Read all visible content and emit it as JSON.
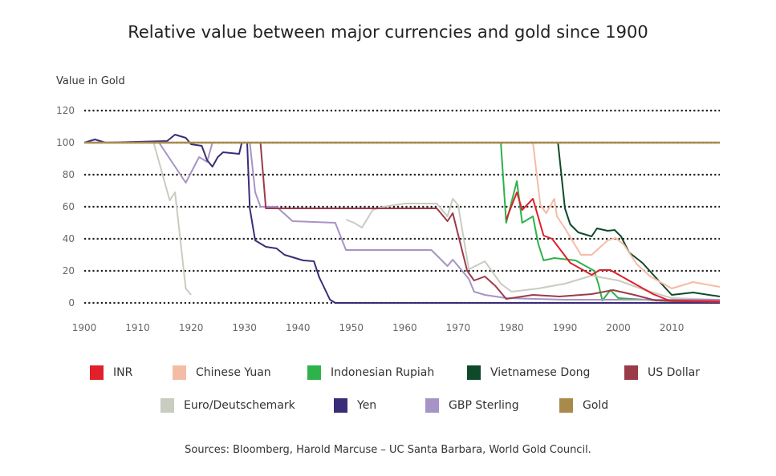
{
  "chart_data": {
    "type": "line",
    "title": "Relative value between major currencies and gold since 1900",
    "ylabel": "Value in Gold",
    "xlabel": "",
    "xlim": [
      1900,
      2019
    ],
    "ylim": [
      0,
      120
    ],
    "x_ticks": [
      "1900",
      "1910",
      "1920",
      "1930",
      "1940",
      "1950",
      "1960",
      "1970",
      "1980",
      "1990",
      "2000",
      "2010"
    ],
    "y_ticks": [
      "0",
      "20",
      "40",
      "60",
      "80",
      "100",
      "120"
    ],
    "grid": "horizontal dotted",
    "legend_placement": "bottom",
    "series": [
      {
        "name": "Gold",
        "color": "#a88a4c",
        "points": [
          [
            1900,
            100
          ],
          [
            2019,
            100
          ]
        ]
      },
      {
        "name": "Indonesian Rupiah",
        "color": "#2db34a",
        "points": [
          [
            1900,
            100
          ],
          [
            1978,
            100
          ],
          [
            1979,
            50
          ],
          [
            1981,
            76
          ],
          [
            1982,
            50
          ],
          [
            1984,
            54
          ],
          [
            1985,
            37
          ],
          [
            1986,
            26.5
          ],
          [
            1988,
            28
          ],
          [
            1992,
            26.5
          ],
          [
            1995.5,
            20
          ],
          [
            1996.3,
            11.5
          ],
          [
            1997,
            1.5
          ],
          [
            1998.5,
            8
          ],
          [
            2000,
            3
          ],
          [
            2005,
            2
          ],
          [
            2010,
            1
          ],
          [
            2019,
            1
          ]
        ]
      },
      {
        "name": "Vietnamese Dong",
        "color": "#0e4a2a",
        "points": [
          [
            1966,
            100
          ],
          [
            1988.7,
            100
          ],
          [
            1990,
            59
          ],
          [
            1991,
            49
          ],
          [
            1992.5,
            44
          ],
          [
            1995,
            41.5
          ],
          [
            1996,
            46.5
          ],
          [
            1998,
            45
          ],
          [
            1999.3,
            45.5
          ],
          [
            2000.5,
            41.5
          ],
          [
            2002,
            31.5
          ],
          [
            2004.5,
            25
          ],
          [
            2007.5,
            14
          ],
          [
            2010,
            5
          ],
          [
            2014,
            6.5
          ],
          [
            2019,
            4
          ]
        ]
      },
      {
        "name": "Euro/Deutschemark",
        "color": "#c9ccc0",
        "points": [
          [
            1900,
            100
          ],
          [
            1913,
            100
          ],
          [
            1916,
            64
          ],
          [
            1917,
            69
          ],
          [
            1919,
            9
          ],
          [
            1920,
            5
          ]
        ]
      },
      {
        "name": "Euro/Deutschemark",
        "color": "#c9ccc0",
        "points": [
          [
            1949,
            52
          ],
          [
            1950.5,
            50
          ],
          [
            1952,
            47
          ],
          [
            1954,
            58
          ],
          [
            1956,
            60
          ],
          [
            1960,
            62
          ],
          [
            1966,
            62
          ],
          [
            1968,
            54
          ],
          [
            1969,
            65
          ],
          [
            1970,
            61
          ],
          [
            1972,
            21
          ],
          [
            1975,
            26
          ],
          [
            1978,
            12
          ],
          [
            1980,
            7
          ],
          [
            1985,
            9
          ],
          [
            1990,
            12
          ],
          [
            1995,
            17
          ],
          [
            2000,
            14
          ],
          [
            2005,
            8
          ],
          [
            2010,
            3
          ],
          [
            2019,
            2
          ]
        ]
      },
      {
        "name": "GBP Sterling",
        "color": "#a893c6",
        "points": [
          [
            1900,
            100
          ],
          [
            1914,
            100
          ],
          [
            1919,
            75
          ],
          [
            1921.5,
            91
          ],
          [
            1923,
            88
          ],
          [
            1924,
            100
          ],
          [
            1931,
            100
          ],
          [
            1932,
            69
          ],
          [
            1933,
            60
          ],
          [
            1936,
            60
          ],
          [
            1939,
            51
          ],
          [
            1947,
            50
          ],
          [
            1949,
            33
          ],
          [
            1965,
            33
          ],
          [
            1968,
            23
          ],
          [
            1969,
            27
          ],
          [
            1972,
            15
          ],
          [
            1973,
            7
          ],
          [
            1975,
            5
          ],
          [
            1979,
            3
          ],
          [
            1990,
            2
          ],
          [
            2019,
            2
          ]
        ]
      },
      {
        "name": "Yen",
        "color": "#3a2d78",
        "points": [
          [
            1900,
            100
          ],
          [
            1902,
            102
          ],
          [
            1904,
            100
          ],
          [
            1915.5,
            101
          ],
          [
            1917,
            105
          ],
          [
            1919,
            103
          ],
          [
            1920,
            99
          ],
          [
            1922,
            98
          ],
          [
            1923,
            89
          ],
          [
            1924,
            85
          ],
          [
            1925,
            91
          ],
          [
            1926,
            94
          ],
          [
            1929,
            93
          ],
          [
            1929.5,
            100
          ],
          [
            1930.5,
            100
          ],
          [
            1931,
            59
          ],
          [
            1932,
            39
          ],
          [
            1934,
            35
          ],
          [
            1936,
            34
          ],
          [
            1937.5,
            30
          ],
          [
            1939.5,
            28
          ],
          [
            1941,
            26.5
          ],
          [
            1943,
            26
          ],
          [
            1944,
            16
          ],
          [
            1946,
            2
          ],
          [
            1947,
            0
          ],
          [
            2019,
            0
          ]
        ]
      },
      {
        "name": "US Dollar",
        "color": "#9b3b4a",
        "points": [
          [
            1900,
            100
          ],
          [
            1933,
            100
          ],
          [
            1934,
            59
          ],
          [
            1966,
            59
          ],
          [
            1968,
            51
          ],
          [
            1969,
            56
          ],
          [
            1971.7,
            20
          ],
          [
            1973,
            14
          ],
          [
            1975,
            16.5
          ],
          [
            1977,
            10.5
          ],
          [
            1979,
            2.5
          ],
          [
            1984,
            5
          ],
          [
            1989,
            4
          ],
          [
            1995,
            5.5
          ],
          [
            1999,
            8
          ],
          [
            2003,
            5
          ],
          [
            2007,
            1.5
          ],
          [
            2019,
            0.5
          ]
        ]
      },
      {
        "name": "INR",
        "color": "#e0202a",
        "points": [
          [
            1979,
            52
          ],
          [
            1981,
            69
          ],
          [
            1982,
            58
          ],
          [
            1984,
            65
          ],
          [
            1986,
            42
          ],
          [
            1987.6,
            40
          ],
          [
            1991,
            25
          ],
          [
            1995,
            17.5
          ],
          [
            1996.5,
            20.5
          ],
          [
            1998.5,
            20.5
          ],
          [
            2002.5,
            13
          ],
          [
            2006.5,
            5.5
          ],
          [
            2009.5,
            1.5
          ],
          [
            2019,
            1
          ]
        ]
      },
      {
        "name": "Chinese Yuan",
        "color": "#f5bca5",
        "points": [
          [
            1984,
            100
          ],
          [
            1985.4,
            61
          ],
          [
            1986.5,
            56
          ],
          [
            1988,
            65
          ],
          [
            1988.5,
            54
          ],
          [
            1990,
            46.5
          ],
          [
            1993,
            30
          ],
          [
            1995,
            30
          ],
          [
            1998,
            39
          ],
          [
            1999.5,
            40.5
          ],
          [
            2001,
            36.5
          ],
          [
            2003.5,
            24
          ],
          [
            2006,
            16.5
          ],
          [
            2010,
            9
          ],
          [
            2014,
            13
          ],
          [
            2019,
            10
          ]
        ]
      }
    ],
    "legend": [
      {
        "name": "INR",
        "color": "#e0202a"
      },
      {
        "name": "Chinese Yuan",
        "color": "#f5bca5"
      },
      {
        "name": "Indonesian Rupiah",
        "color": "#2db34a"
      },
      {
        "name": "Vietnamese Dong",
        "color": "#0e4a2a"
      },
      {
        "name": "US Dollar",
        "color": "#9b3b4a"
      },
      {
        "name": "Euro/Deutschemark",
        "color": "#c9ccc0"
      },
      {
        "name": "Yen",
        "color": "#3a2d78"
      },
      {
        "name": "GBP Sterling",
        "color": "#a893c6"
      },
      {
        "name": "Gold",
        "color": "#a88a4c"
      }
    ],
    "source": "Sources: Bloomberg, Harold Marcuse – UC Santa Barbara, World Gold Council."
  }
}
